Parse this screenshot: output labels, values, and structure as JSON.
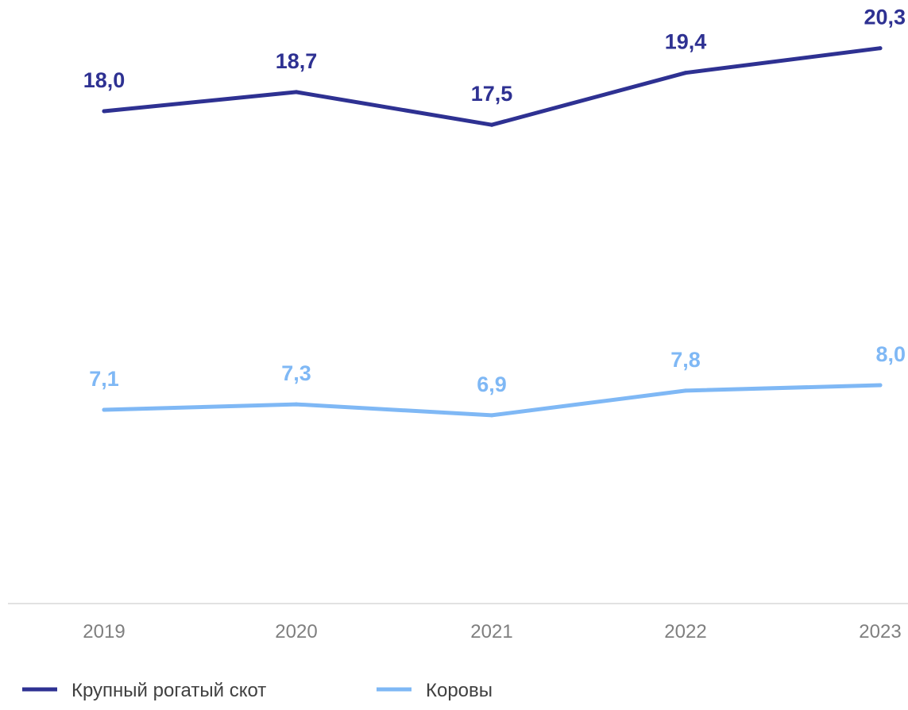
{
  "chart_data": {
    "type": "line",
    "categories": [
      "2019",
      "2020",
      "2021",
      "2022",
      "2023"
    ],
    "series": [
      {
        "name": "Крупный рогатый скот",
        "values": [
          18.0,
          18.7,
          17.5,
          19.4,
          20.3
        ],
        "labels": [
          "18,0",
          "18,7",
          "17,5",
          "19,4",
          "20,3"
        ],
        "color": "#2e3192"
      },
      {
        "name": "Коровы",
        "values": [
          7.1,
          7.3,
          6.9,
          7.8,
          8.0
        ],
        "labels": [
          "7,1",
          "7,3",
          "6,9",
          "7,8",
          "8,0"
        ],
        "color": "#7fb8f5"
      }
    ],
    "ylim": [
      0,
      22
    ],
    "grid": false,
    "legend_position": "bottom-left",
    "axis_color": "#d9d9d9",
    "tick_color": "#7f7f7f"
  }
}
